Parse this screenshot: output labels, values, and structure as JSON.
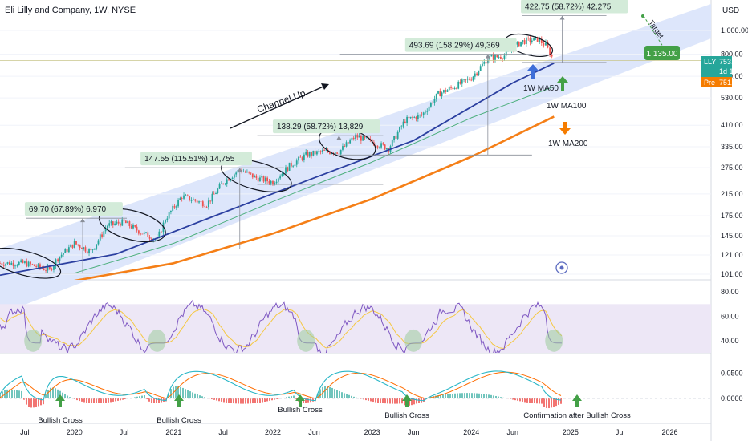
{
  "chart_title": "Eli Lilly and Company, 1W, NYSE",
  "currency": "USD",
  "price_axis_ticks": [
    "1,000.00",
    "800.00",
    "650.00",
    "530.00",
    "410.00",
    "335.00",
    "275.00",
    "215.00",
    "175.00",
    "145.00",
    "121.00",
    "101.00"
  ],
  "rsi_axis_ticks": [
    "80.00",
    "60.00",
    "40.00"
  ],
  "macd_axis_ticks": [
    "0.0500",
    "0.0000"
  ],
  "time_axis_ticks": [
    "Jul",
    "2020",
    "Jul",
    "2021",
    "Jul",
    "2022",
    "Jun",
    "2023",
    "Jun",
    "2024",
    "Jun",
    "2025",
    "Jul",
    "2026"
  ],
  "price_badges": {
    "symbol": "LLY",
    "last_price": "753.41",
    "countdown": "1d 10h",
    "pre_label": "Pre",
    "pre_price": "751.00",
    "target_price": "1,135.00"
  },
  "annotations": {
    "channel": "Channel Up",
    "target": "Target",
    "ma50": "1W MA50",
    "ma100": "1W MA100",
    "ma200": "1W MA200",
    "bullish_cross": "Bullish Cross",
    "confirmation": "Confirmation after Bullish Cross"
  },
  "measures": [
    "69.70 (67.89%) 6,970",
    "147.55 (115.51%) 14,755",
    "138.29 (58.72%) 13,829",
    "493.69 (158.29%) 49,369",
    "422.75 (58.72%) 42,275"
  ],
  "colors": {
    "channel_fill": "#dde6fb",
    "ma50": "#2b3fa0",
    "ma100": "#4caf7d",
    "ma200": "#f57f17",
    "candle_up": "#26a69a",
    "candle_down": "#ef5350",
    "rsi": "#7e57c2",
    "rsi_ma": "#f5c842",
    "macd": "#29b6c6",
    "signal": "#ff6d00",
    "green_arrow": "#43a047",
    "blue_arrow": "#3f6fd8",
    "target_badge": "#43a047",
    "pre_badge": "#f57c00",
    "price_badge": "#26a69a"
  },
  "chart_data": {
    "type": "candlestick",
    "title": "Eli Lilly and Company, 1W, NYSE",
    "scale": "log",
    "x_range": [
      "2019-04",
      "2026-06"
    ],
    "y_range": [
      100,
      1150
    ],
    "price_path": [
      {
        "date": "2019-04",
        "close": 112
      },
      {
        "date": "2019-07",
        "close": 112
      },
      {
        "date": "2019-10",
        "close": 105
      },
      {
        "date": "2019-11",
        "close": 118
      },
      {
        "date": "2020-01",
        "close": 135
      },
      {
        "date": "2020-03",
        "close": 125
      },
      {
        "date": "2020-05",
        "close": 160
      },
      {
        "date": "2020-07",
        "close": 165
      },
      {
        "date": "2020-09",
        "close": 150
      },
      {
        "date": "2020-11",
        "close": 140
      },
      {
        "date": "2020-12",
        "close": 170
      },
      {
        "date": "2021-02",
        "close": 210
      },
      {
        "date": "2021-05",
        "close": 195
      },
      {
        "date": "2021-07",
        "close": 240
      },
      {
        "date": "2021-09",
        "close": 270
      },
      {
        "date": "2021-11",
        "close": 250
      },
      {
        "date": "2022-01",
        "close": 240
      },
      {
        "date": "2022-03",
        "close": 280
      },
      {
        "date": "2022-05",
        "close": 310
      },
      {
        "date": "2022-07",
        "close": 320
      },
      {
        "date": "2022-09",
        "close": 320
      },
      {
        "date": "2022-11",
        "close": 370
      },
      {
        "date": "2023-01",
        "close": 350
      },
      {
        "date": "2023-03",
        "close": 330
      },
      {
        "date": "2023-05",
        "close": 430
      },
      {
        "date": "2023-07",
        "close": 450
      },
      {
        "date": "2023-09",
        "close": 550
      },
      {
        "date": "2023-11",
        "close": 590
      },
      {
        "date": "2024-01",
        "close": 640
      },
      {
        "date": "2024-03",
        "close": 770
      },
      {
        "date": "2024-05",
        "close": 790
      },
      {
        "date": "2024-07",
        "close": 900
      },
      {
        "date": "2024-09",
        "close": 920
      },
      {
        "date": "2024-10",
        "close": 870
      },
      {
        "date": "2024-11",
        "close": 753
      }
    ],
    "series": [
      {
        "name": "1W MA50",
        "points": [
          {
            "date": "2019-04",
            "v": 100
          },
          {
            "date": "2020-06",
            "v": 122
          },
          {
            "date": "2021-06",
            "v": 175
          },
          {
            "date": "2022-06",
            "v": 250
          },
          {
            "date": "2023-06",
            "v": 355
          },
          {
            "date": "2024-06",
            "v": 610
          },
          {
            "date": "2024-11",
            "v": 735
          }
        ]
      },
      {
        "name": "1W MA100",
        "points": [
          {
            "date": "2020-01",
            "v": 102
          },
          {
            "date": "2021-01",
            "v": 135
          },
          {
            "date": "2022-01",
            "v": 200
          },
          {
            "date": "2023-01",
            "v": 290
          },
          {
            "date": "2024-01",
            "v": 440
          },
          {
            "date": "2024-11",
            "v": 590
          }
        ]
      },
      {
        "name": "1W MA200",
        "points": [
          {
            "date": "2020-01",
            "v": 95
          },
          {
            "date": "2021-01",
            "v": 112
          },
          {
            "date": "2022-01",
            "v": 148
          },
          {
            "date": "2023-01",
            "v": 205
          },
          {
            "date": "2024-01",
            "v": 305
          },
          {
            "date": "2024-11",
            "v": 445
          }
        ]
      }
    ],
    "rsi": {
      "range": [
        30,
        90
      ],
      "ticks": [
        80,
        60,
        40
      ],
      "lows": [
        "2019-08",
        "2020-11",
        "2022-05",
        "2023-06",
        "2024-11"
      ]
    },
    "macd": {
      "ticks": [
        0.05,
        0
      ]
    }
  }
}
